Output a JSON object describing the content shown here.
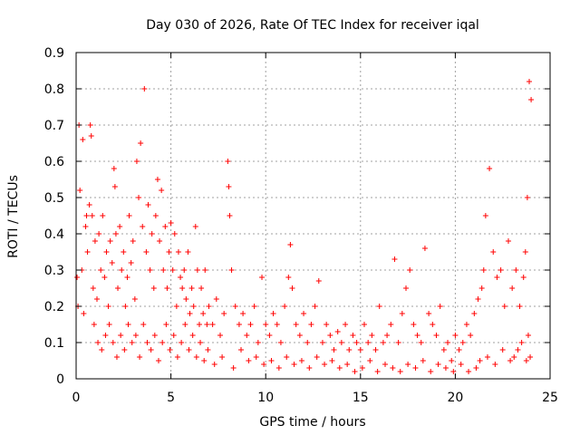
{
  "chart_data": {
    "type": "scatter",
    "title": "Day 030 of 2026, Rate Of TEC Index for receiver iqal",
    "xlabel": "GPS time / hours",
    "ylabel": "ROTI / TECUs",
    "xlim": [
      0,
      25
    ],
    "ylim": [
      0,
      0.9
    ],
    "xticks": [
      0,
      5,
      10,
      15,
      20,
      25
    ],
    "xtick_labels": [
      "0",
      "5",
      "10",
      "15",
      "20",
      "25"
    ],
    "yticks": [
      0,
      0.1,
      0.2,
      0.3,
      0.4,
      0.5,
      0.6,
      0.7,
      0.8,
      0.9
    ],
    "ytick_labels": [
      "0",
      "0.1",
      "0.2",
      "0.3",
      "0.4",
      "0.5",
      "0.6",
      "0.7",
      "0.8",
      "0.9"
    ],
    "grid": true,
    "marker": "+",
    "color": "#ff0000",
    "series": [
      {
        "name": "ROTI",
        "x": [
          0.05,
          0.1,
          0.2,
          0.3,
          0.4,
          0.5,
          0.6,
          0.7,
          0.75,
          0.8,
          0.85,
          0.9,
          1.0,
          1.1,
          1.2,
          1.3,
          1.4,
          1.5,
          1.6,
          1.7,
          1.8,
          1.9,
          2.0,
          2.05,
          2.1,
          2.2,
          2.3,
          2.4,
          2.5,
          2.6,
          2.7,
          2.8,
          2.9,
          3.0,
          3.1,
          3.2,
          3.3,
          3.4,
          3.5,
          3.6,
          3.7,
          3.8,
          3.9,
          4.0,
          4.1,
          4.2,
          4.3,
          4.4,
          4.5,
          4.6,
          4.7,
          4.8,
          4.9,
          5.0,
          5.1,
          5.2,
          5.3,
          5.4,
          5.5,
          5.6,
          5.7,
          5.8,
          5.9,
          6.0,
          6.1,
          6.2,
          6.3,
          6.4,
          6.5,
          6.6,
          6.7,
          6.8,
          6.9,
          7.0,
          7.2,
          7.4,
          7.6,
          7.8,
          8.0,
          8.05,
          8.1,
          8.2,
          8.4,
          8.6,
          8.8,
          9.0,
          9.2,
          9.4,
          9.6,
          9.8,
          10.0,
          10.2,
          10.4,
          10.6,
          10.8,
          11.0,
          11.2,
          11.3,
          11.4,
          11.6,
          11.8,
          12.0,
          12.2,
          12.4,
          12.6,
          12.8,
          13.0,
          13.2,
          13.4,
          13.6,
          13.8,
          14.0,
          14.2,
          14.4,
          14.6,
          14.8,
          15.0,
          15.2,
          15.4,
          15.6,
          15.8,
          16.0,
          16.2,
          16.4,
          16.6,
          16.8,
          17.0,
          17.2,
          17.4,
          17.6,
          17.8,
          18.0,
          18.2,
          18.4,
          18.6,
          18.8,
          19.0,
          19.2,
          19.4,
          19.6,
          19.8,
          20.0,
          20.2,
          20.4,
          20.6,
          20.8,
          21.0,
          21.2,
          21.4,
          21.5,
          21.6,
          21.8,
          22.0,
          22.2,
          22.4,
          22.6,
          22.8,
          23.0,
          23.2,
          23.4,
          23.6,
          23.7,
          23.8,
          23.9,
          24.0,
          0.15,
          0.35,
          0.55,
          0.95,
          1.15,
          1.35,
          1.55,
          1.75,
          1.95,
          2.15,
          2.35,
          2.55,
          2.75,
          2.95,
          3.15,
          3.35,
          3.55,
          3.75,
          3.95,
          4.15,
          4.35,
          4.55,
          4.75,
          4.95,
          5.15,
          5.35,
          5.55,
          5.75,
          5.95,
          6.15,
          6.35,
          6.55,
          6.75,
          6.95,
          7.3,
          7.7,
          8.3,
          8.7,
          9.1,
          9.5,
          9.9,
          10.3,
          10.7,
          11.1,
          11.5,
          11.9,
          12.3,
          12.7,
          13.1,
          13.5,
          13.9,
          14.3,
          14.7,
          15.1,
          15.5,
          15.9,
          16.3,
          16.7,
          17.1,
          17.5,
          17.9,
          18.3,
          18.7,
          19.1,
          19.5,
          19.9,
          20.3,
          20.7,
          21.1,
          21.3,
          21.7,
          22.1,
          22.5,
          22.9,
          23.1,
          23.3,
          23.5,
          23.75,
          23.85,
          23.95
        ],
        "y": [
          0.28,
          0.2,
          0.52,
          0.3,
          0.18,
          0.42,
          0.35,
          0.48,
          0.7,
          0.67,
          0.45,
          0.25,
          0.38,
          0.22,
          0.4,
          0.3,
          0.45,
          0.28,
          0.35,
          0.2,
          0.38,
          0.32,
          0.58,
          0.53,
          0.4,
          0.25,
          0.42,
          0.3,
          0.35,
          0.2,
          0.28,
          0.45,
          0.32,
          0.38,
          0.22,
          0.6,
          0.5,
          0.65,
          0.42,
          0.8,
          0.35,
          0.48,
          0.3,
          0.4,
          0.25,
          0.45,
          0.55,
          0.38,
          0.52,
          0.3,
          0.42,
          0.25,
          0.35,
          0.43,
          0.3,
          0.4,
          0.2,
          0.35,
          0.28,
          0.25,
          0.3,
          0.22,
          0.35,
          0.18,
          0.25,
          0.2,
          0.42,
          0.3,
          0.15,
          0.25,
          0.18,
          0.3,
          0.15,
          0.2,
          0.15,
          0.22,
          0.12,
          0.18,
          0.6,
          0.53,
          0.45,
          0.3,
          0.2,
          0.15,
          0.18,
          0.12,
          0.15,
          0.2,
          0.1,
          0.28,
          0.15,
          0.12,
          0.18,
          0.15,
          0.1,
          0.2,
          0.28,
          0.37,
          0.25,
          0.15,
          0.12,
          0.18,
          0.1,
          0.15,
          0.2,
          0.27,
          0.1,
          0.15,
          0.12,
          0.08,
          0.13,
          0.1,
          0.15,
          0.08,
          0.12,
          0.1,
          0.08,
          0.15,
          0.1,
          0.12,
          0.08,
          0.2,
          0.1,
          0.12,
          0.15,
          0.33,
          0.1,
          0.18,
          0.25,
          0.3,
          0.15,
          0.12,
          0.1,
          0.36,
          0.18,
          0.15,
          0.12,
          0.2,
          0.08,
          0.1,
          0.05,
          0.12,
          0.08,
          0.1,
          0.15,
          0.12,
          0.18,
          0.22,
          0.25,
          0.3,
          0.45,
          0.58,
          0.35,
          0.28,
          0.3,
          0.2,
          0.38,
          0.25,
          0.3,
          0.2,
          0.28,
          0.35,
          0.5,
          0.82,
          0.77,
          0.7,
          0.66,
          0.45,
          0.15,
          0.1,
          0.08,
          0.12,
          0.15,
          0.1,
          0.06,
          0.12,
          0.08,
          0.15,
          0.1,
          0.12,
          0.06,
          0.15,
          0.1,
          0.08,
          0.12,
          0.05,
          0.1,
          0.15,
          0.08,
          0.12,
          0.06,
          0.1,
          0.15,
          0.08,
          0.12,
          0.06,
          0.1,
          0.05,
          0.08,
          0.04,
          0.06,
          0.03,
          0.08,
          0.05,
          0.06,
          0.04,
          0.05,
          0.03,
          0.06,
          0.04,
          0.05,
          0.03,
          0.06,
          0.04,
          0.05,
          0.03,
          0.04,
          0.02,
          0.03,
          0.05,
          0.02,
          0.04,
          0.03,
          0.02,
          0.04,
          0.03,
          0.05,
          0.02,
          0.04,
          0.03,
          0.02,
          0.04,
          0.02,
          0.03,
          0.05,
          0.06,
          0.04,
          0.08,
          0.05,
          0.06,
          0.08,
          0.1,
          0.05,
          0.12,
          0.06
        ]
      }
    ]
  }
}
